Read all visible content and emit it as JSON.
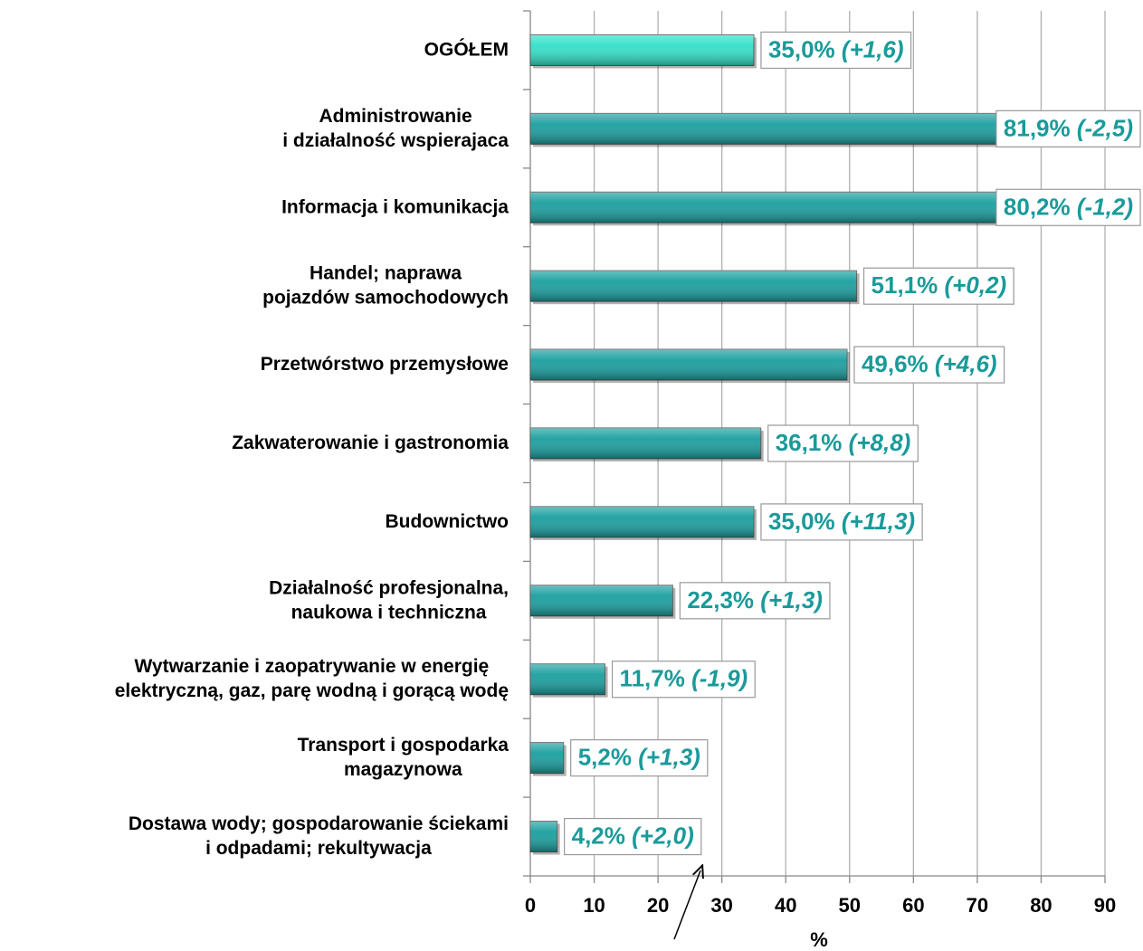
{
  "chart_data": {
    "type": "barh",
    "categories": [
      [
        "OGÓŁEM"
      ],
      [
        "Administrowanie",
        "i działalność wspierajaca"
      ],
      [
        "Informacja i komunikacja"
      ],
      [
        "Handel; naprawa",
        "pojazdów samochodowych"
      ],
      [
        "Przetwórstwo przemysłowe"
      ],
      [
        "Zakwaterowanie i gastronomia"
      ],
      [
        "Budownictwo"
      ],
      [
        "Działalność profesjonalna,",
        "naukowa i techniczna"
      ],
      [
        "Wytwarzanie i zaopatrywanie w energię",
        "elektryczną, gaz, parę wodną i gorącą wodę"
      ],
      [
        "Transport i gospodarka",
        "magazynowa"
      ],
      [
        "Dostawa wody; gospodarowanie ściekami",
        "i odpadami; rekultywacja"
      ]
    ],
    "values": [
      35.0,
      81.9,
      80.2,
      51.1,
      49.6,
      36.1,
      35.0,
      22.3,
      11.7,
      5.2,
      4.2
    ],
    "value_labels": [
      "35,0%",
      "81,9%",
      "80,2%",
      "51,1%",
      "49,6%",
      "36,1%",
      "35,0%",
      "22,3%",
      "11,7%",
      "5,2%",
      "4,2%"
    ],
    "change_labels": [
      "(+1,6)",
      "(-2,5)",
      "(-1,2)",
      "(+0,2)",
      "(+4,6)",
      "(+8,8)",
      "(+11,3)",
      "(+1,3)",
      "(-1,9)",
      "(+1,3)",
      "(+2,0)"
    ],
    "colors": [
      "#33e0c8",
      "#1a9f9f",
      "#1a9f9f",
      "#1a9f9f",
      "#1a9f9f",
      "#1a9f9f",
      "#1a9f9f",
      "#1a9f9f",
      "#1a9f9f",
      "#1a9f9f",
      "#1a9f9f"
    ],
    "label_color": "#1a9a9a",
    "xlabel": "%",
    "xlim": [
      0,
      90
    ],
    "xticks": [
      0,
      10,
      20,
      30,
      40,
      50,
      60,
      70,
      80,
      90
    ],
    "grid": true
  }
}
